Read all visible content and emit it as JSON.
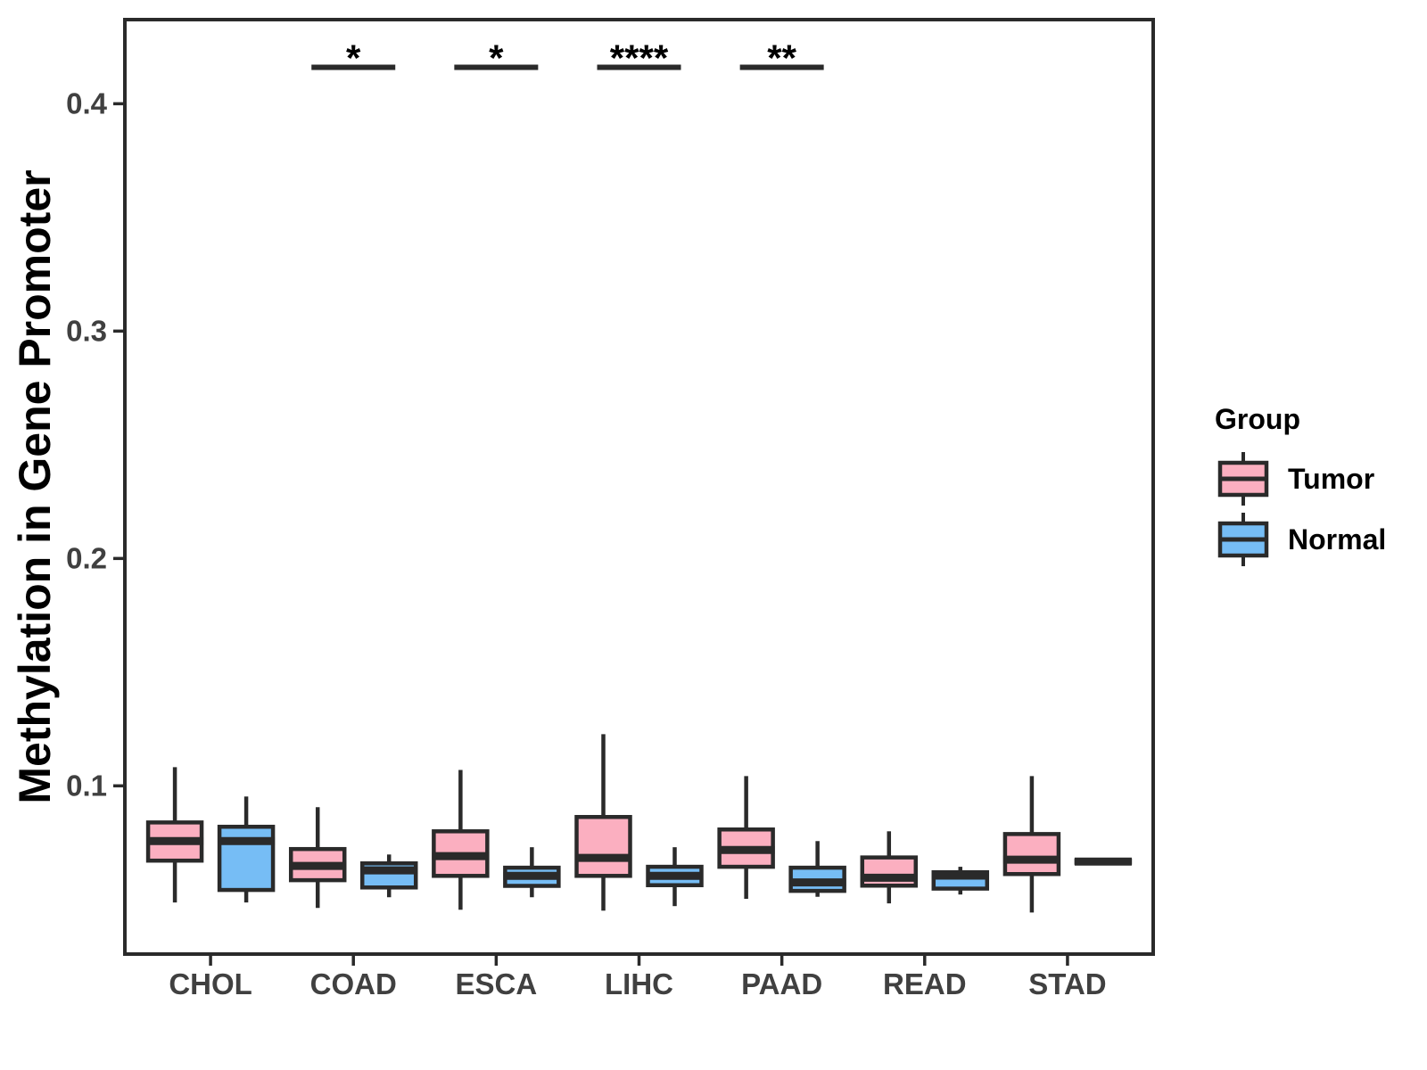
{
  "figure": {
    "background": "#FFFFFF"
  },
  "colors": {
    "tumor_fill": "#FBAFC0",
    "normal_fill": "#76BDF5",
    "stroke": "#2A2A2A",
    "tick_label": "#404040",
    "title_text": "#000000"
  },
  "chart_data": {
    "type": "boxplot",
    "title": "",
    "xlabel": "",
    "ylabel": "Methylation in Gene Promoter",
    "legend_title": "Group",
    "legend_position": "right",
    "grid": false,
    "categories": [
      "CHOL",
      "COAD",
      "ESCA",
      "LIHC",
      "PAAD",
      "READ",
      "STAD"
    ],
    "y_ticks": [
      0.1,
      0.2,
      0.3,
      0.4
    ],
    "y_tick_labels": [
      "0.1",
      "0.2",
      "0.3",
      "0.4"
    ],
    "ylim": [
      0.026,
      0.437
    ],
    "series": [
      {
        "name": "Tumor",
        "fill": "#FBAFC0",
        "boxes": [
          {
            "category": "CHOL",
            "whislo": 0.0487,
            "q1": 0.0671,
            "med": 0.0757,
            "q3": 0.0839,
            "whishi": 0.1082
          },
          {
            "category": "COAD",
            "whislo": 0.0463,
            "q1": 0.0585,
            "med": 0.0648,
            "q3": 0.0722,
            "whishi": 0.0906
          },
          {
            "category": "ESCA",
            "whislo": 0.0455,
            "q1": 0.0604,
            "med": 0.0691,
            "q3": 0.08,
            "whishi": 0.107
          },
          {
            "category": "LIHC",
            "whislo": 0.0451,
            "q1": 0.0604,
            "med": 0.0683,
            "q3": 0.0863,
            "whishi": 0.1227
          },
          {
            "category": "PAAD",
            "whislo": 0.0503,
            "q1": 0.0644,
            "med": 0.0718,
            "q3": 0.0808,
            "whishi": 0.1043
          },
          {
            "category": "READ",
            "whislo": 0.0483,
            "q1": 0.0561,
            "med": 0.0596,
            "q3": 0.0685,
            "whishi": 0.08
          },
          {
            "category": "STAD",
            "whislo": 0.0443,
            "q1": 0.0612,
            "med": 0.0675,
            "q3": 0.0788,
            "whishi": 0.1043
          }
        ]
      },
      {
        "name": "Normal",
        "fill": "#76BDF5",
        "boxes": [
          {
            "category": "CHOL",
            "whislo": 0.0487,
            "q1": 0.0542,
            "med": 0.0757,
            "q3": 0.082,
            "whishi": 0.0953
          },
          {
            "category": "COAD",
            "whislo": 0.051,
            "q1": 0.0553,
            "med": 0.0628,
            "q3": 0.0659,
            "whishi": 0.0698
          },
          {
            "category": "ESCA",
            "whislo": 0.051,
            "q1": 0.056,
            "med": 0.0604,
            "q3": 0.064,
            "whishi": 0.073
          },
          {
            "category": "LIHC",
            "whislo": 0.0471,
            "q1": 0.0563,
            "med": 0.0604,
            "q3": 0.0644,
            "whishi": 0.073
          },
          {
            "category": "PAAD",
            "whislo": 0.0512,
            "q1": 0.0538,
            "med": 0.0575,
            "q3": 0.064,
            "whishi": 0.0757
          },
          {
            "category": "READ",
            "whislo": 0.0522,
            "q1": 0.0548,
            "med": 0.0605,
            "q3": 0.062,
            "whishi": 0.0644
          },
          {
            "category": "STAD",
            "whislo": 0.0655,
            "q1": 0.0662,
            "med": 0.0667,
            "q3": 0.0672,
            "whishi": 0.0678
          }
        ]
      }
    ],
    "annotations": [
      {
        "category": "COAD",
        "label": "*",
        "bar_y": 0.416
      },
      {
        "category": "ESCA",
        "label": "*",
        "bar_y": 0.416
      },
      {
        "category": "LIHC",
        "label": "****",
        "bar_y": 0.416
      },
      {
        "category": "PAAD",
        "label": "**",
        "bar_y": 0.416
      }
    ]
  }
}
